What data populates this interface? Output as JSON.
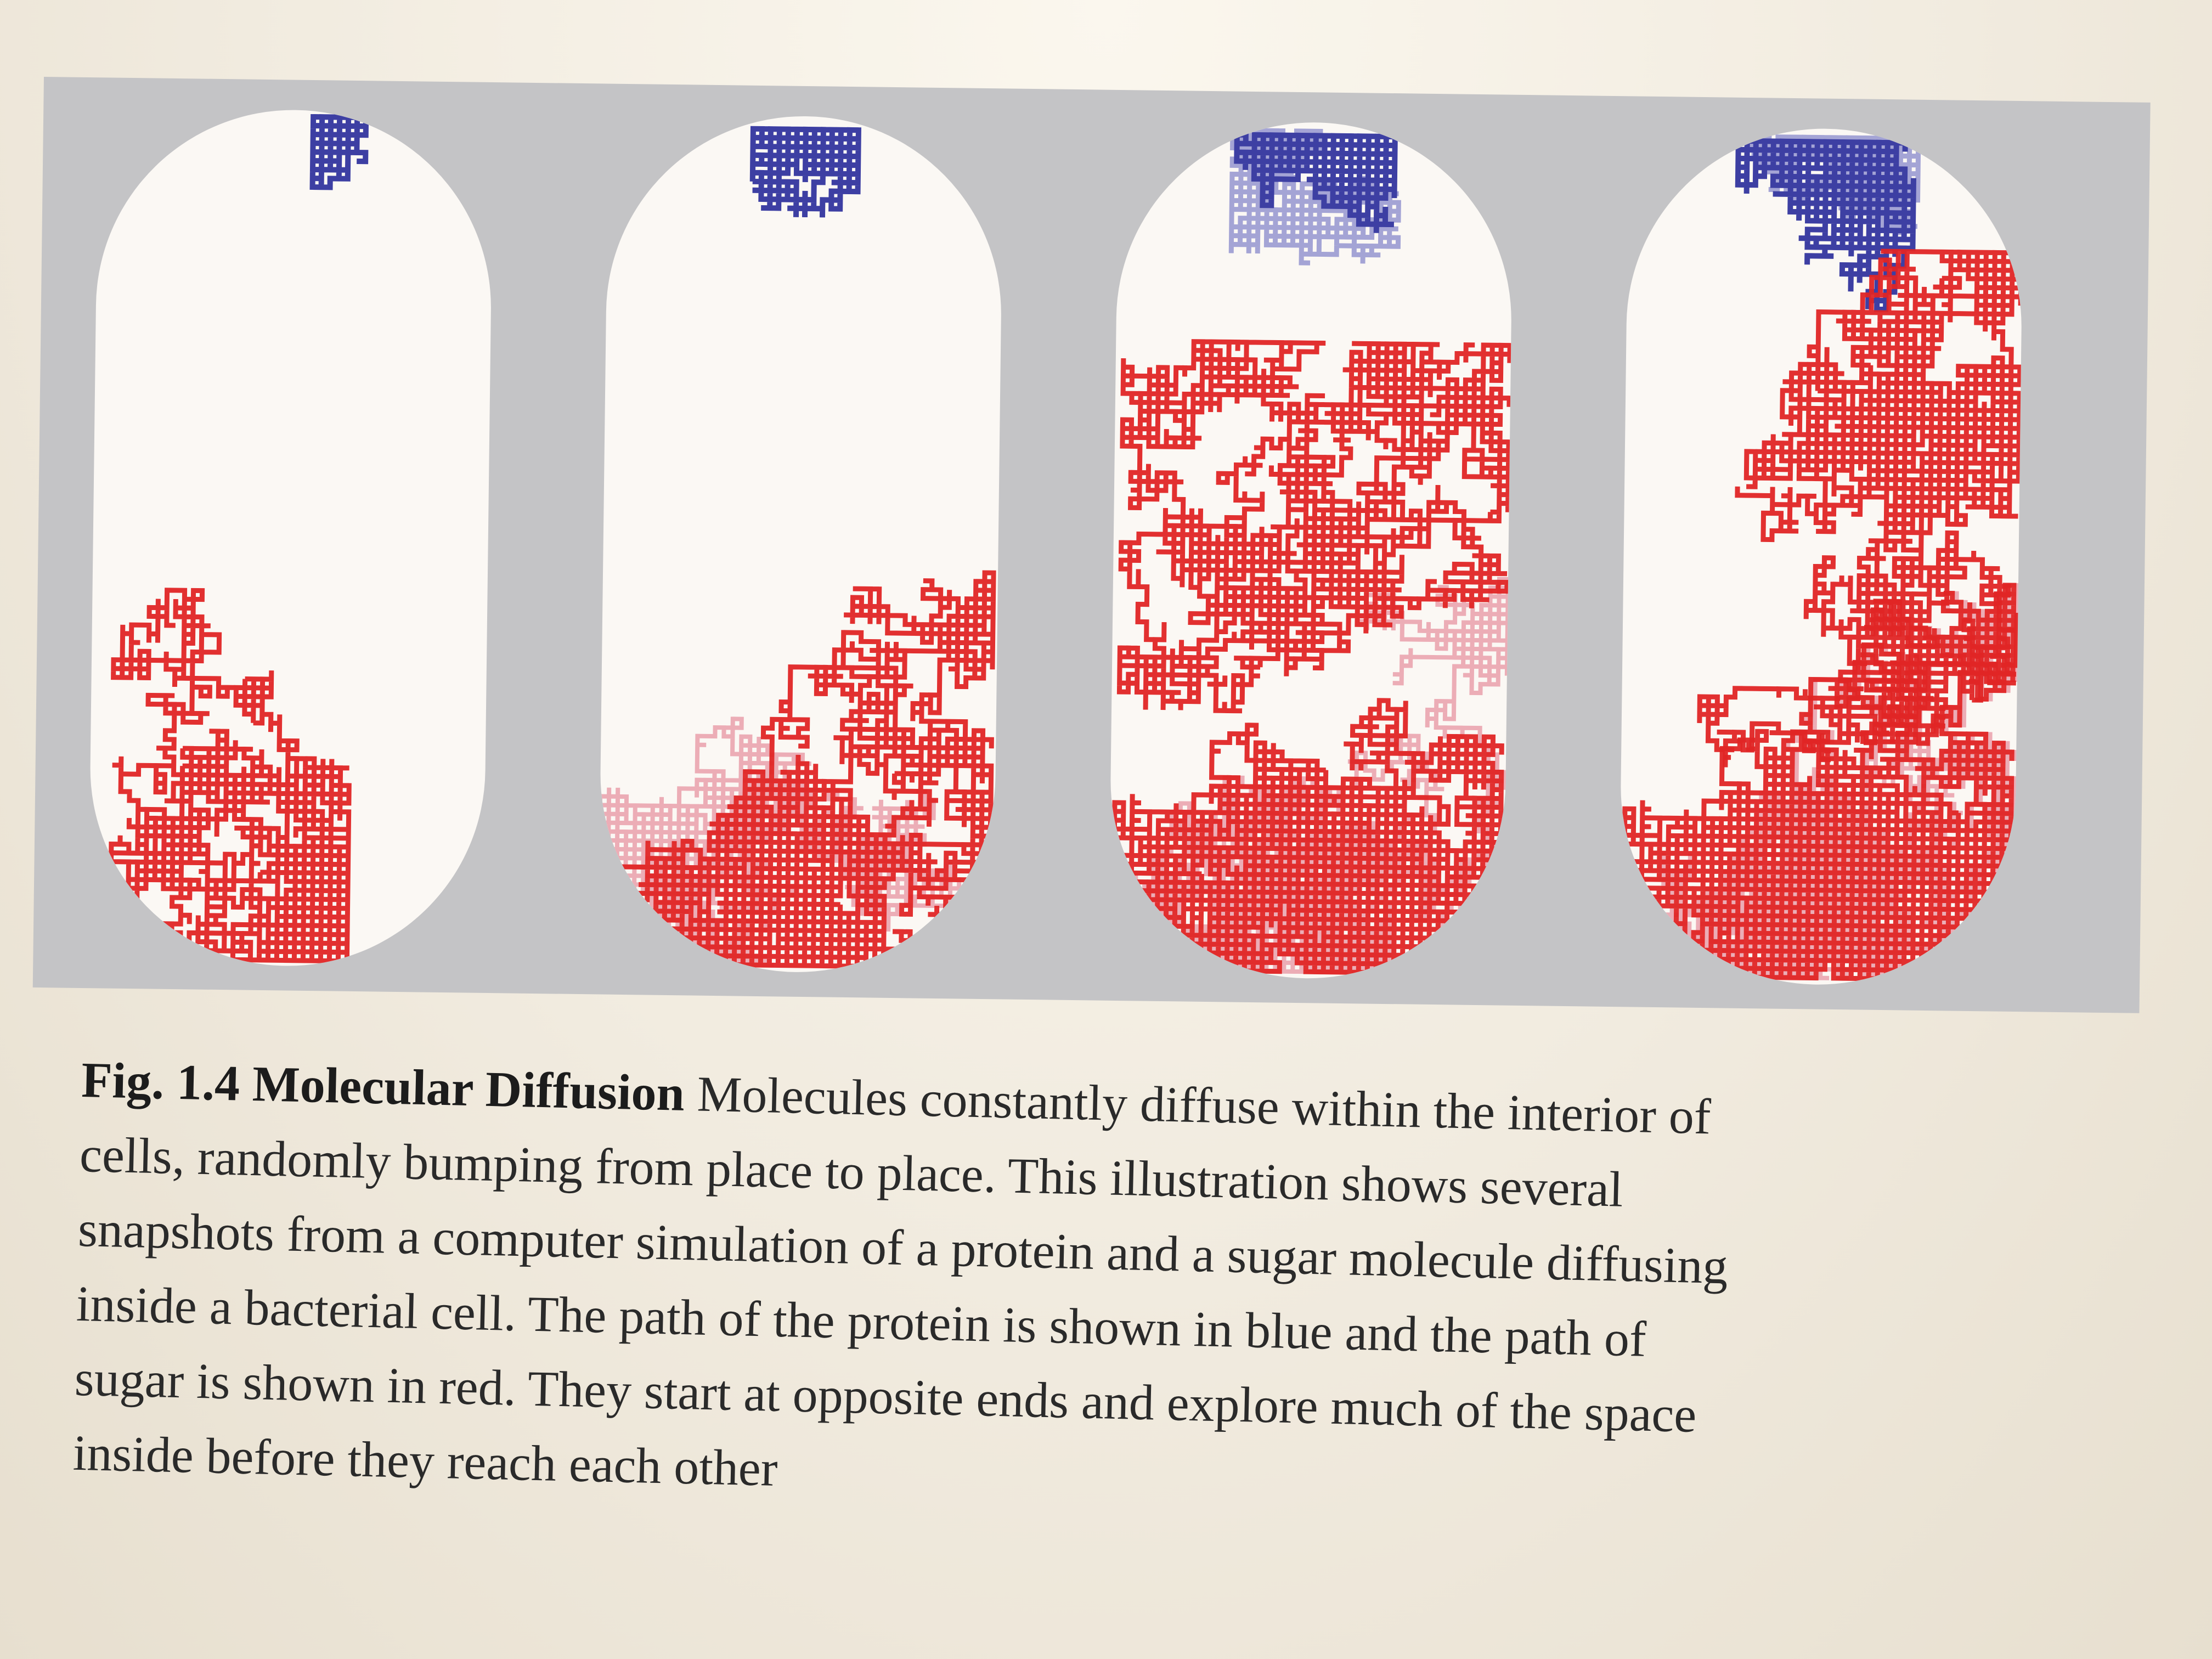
{
  "figure": {
    "panels": [
      {
        "id": 1,
        "protein_coverage": 0.05,
        "sugar_coverage": 0.2
      },
      {
        "id": 2,
        "protein_coverage": 0.15,
        "sugar_coverage": 0.4
      },
      {
        "id": 3,
        "protein_coverage": 0.25,
        "sugar_coverage": 0.6
      },
      {
        "id": 4,
        "protein_coverage": 0.3,
        "sugar_coverage": 0.75
      }
    ],
    "colors": {
      "panel_background": "#c4c4c6",
      "cell_fill": "#fbf8f4",
      "protein_path": "#3d3fa3",
      "protein_path_faded": "#8f8fcd",
      "sugar_path": "#e02525",
      "sugar_path_faded": "#e99aa6"
    }
  },
  "caption": {
    "label": "Fig. 1.4 Molecular Diffusion",
    "lines": [
      "Molecules constantly diffuse within the interior of",
      "cells, randomly bumping from place to place. This illustration shows several",
      "snapshots from a computer simulation of a protein and a sugar molecule diffusing",
      "inside a bacterial cell. The path of the protein is shown in blue and the path of",
      "sugar is shown in red. They start at opposite ends and explore much of the space",
      "inside before they reach each other"
    ]
  }
}
